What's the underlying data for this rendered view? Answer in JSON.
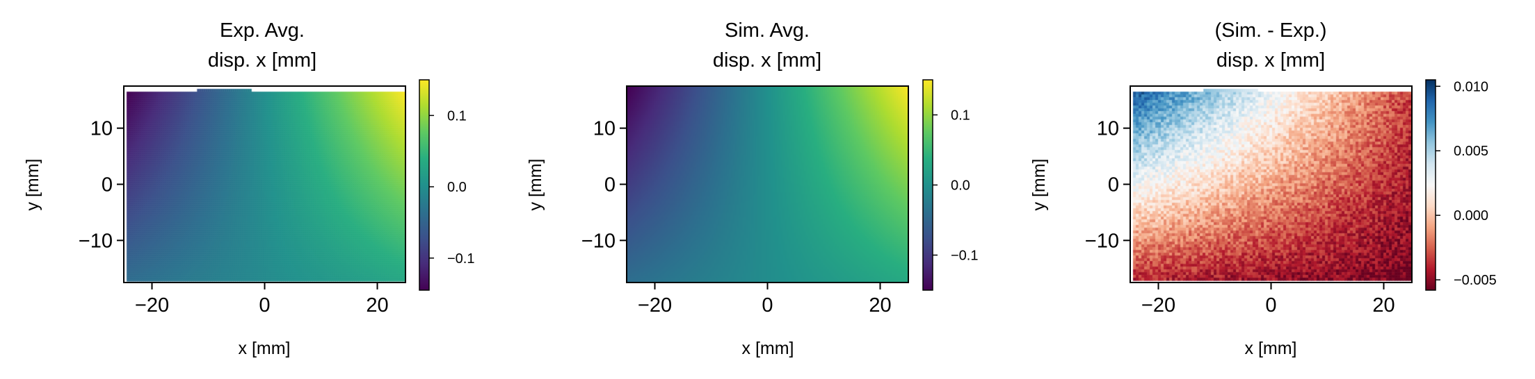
{
  "chart_data": [
    {
      "type": "heatmap",
      "title_lines": [
        "Exp. Avg.",
        "disp. x [mm]"
      ],
      "xlabel": "x [mm]",
      "ylabel": "y [mm]",
      "xlim": [
        -25,
        25
      ],
      "ylim": [
        -17.5,
        17.5
      ],
      "xticks": [
        -20,
        0,
        20
      ],
      "yticks": [
        -10,
        0,
        10
      ],
      "xtick_labels": [
        "−20",
        "0",
        "20"
      ],
      "ytick_labels": [
        "−10",
        "0",
        "10"
      ],
      "field": {
        "x_range": [
          -24.5,
          25
        ],
        "y_range": [
          -17,
          16.5
        ],
        "corner_values": {
          "bottom_left": -0.04,
          "top_left": -0.145,
          "bottom_right": 0.03,
          "top_right": 0.15
        },
        "notch": {
          "x_range": [
            -12,
            -2.5
          ],
          "y_top": 17
        }
      },
      "colormap": "viridis",
      "colorbar": {
        "range": [
          -0.145,
          0.15
        ],
        "ticks": [
          -0.1,
          0.0,
          0.1
        ],
        "tick_labels": [
          "−0.1",
          "0.0",
          "0.1"
        ]
      }
    },
    {
      "type": "heatmap",
      "title_lines": [
        "Sim. Avg.",
        "disp. x [mm]"
      ],
      "xlabel": "x [mm]",
      "ylabel": "y [mm]",
      "xlim": [
        -25,
        25
      ],
      "ylim": [
        -17.5,
        17.5
      ],
      "xticks": [
        -20,
        0,
        20
      ],
      "yticks": [
        -10,
        0,
        10
      ],
      "xtick_labels": [
        "−20",
        "0",
        "20"
      ],
      "ytick_labels": [
        "−10",
        "0",
        "10"
      ],
      "field": {
        "x_range": [
          -25,
          25
        ],
        "y_range": [
          -17.5,
          17.5
        ],
        "corner_values": {
          "bottom_left": -0.04,
          "top_left": -0.15,
          "bottom_right": 0.03,
          "top_right": 0.15
        }
      },
      "colormap": "viridis",
      "colorbar": {
        "range": [
          -0.15,
          0.15
        ],
        "ticks": [
          -0.1,
          0.0,
          0.1
        ],
        "tick_labels": [
          "−0.1",
          "0.0",
          "0.1"
        ]
      }
    },
    {
      "type": "heatmap",
      "title_lines": [
        "(Sim. - Exp.)",
        "disp. x [mm]"
      ],
      "xlabel": "x [mm]",
      "ylabel": "y [mm]",
      "xlim": [
        -25,
        25
      ],
      "ylim": [
        -17.5,
        17.5
      ],
      "xticks": [
        -20,
        0,
        20
      ],
      "yticks": [
        -10,
        0,
        10
      ],
      "xtick_labels": [
        "−20",
        "0",
        "20"
      ],
      "ytick_labels": [
        "−10",
        "0",
        "10"
      ],
      "field": {
        "x_range": [
          -24.5,
          25
        ],
        "y_range": [
          -17,
          16.5
        ],
        "corner_values": {
          "bottom_left": -0.004,
          "top_left": 0.009,
          "bottom_right": -0.0055,
          "top_right": -0.0035
        },
        "noise": 0.0012,
        "notch": {
          "x_range": [
            -12,
            -2.5
          ],
          "y_top": 17
        }
      },
      "colormap": "RdBu",
      "colorbar": {
        "range": [
          -0.0058,
          0.0105
        ],
        "ticks": [
          -0.005,
          0.0,
          0.005,
          0.01
        ],
        "tick_labels": [
          "−0.005",
          "0.000",
          "0.005",
          "0.010"
        ]
      }
    }
  ]
}
